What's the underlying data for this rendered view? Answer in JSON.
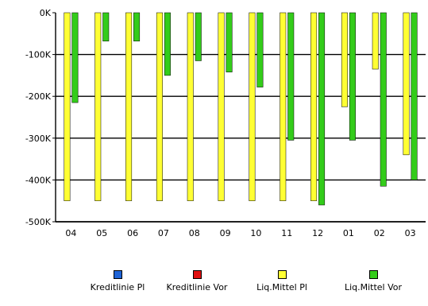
{
  "chart_data": {
    "type": "bar",
    "categories": [
      "04",
      "05",
      "06",
      "07",
      "08",
      "09",
      "10",
      "11",
      "12",
      "01",
      "02",
      "03"
    ],
    "series": [
      {
        "name": "Kreditlinie Pl",
        "color": "#1e63d6",
        "values": [
          0,
          0,
          0,
          0,
          0,
          0,
          0,
          0,
          0,
          0,
          0,
          0
        ]
      },
      {
        "name": "Kreditlinie Vor",
        "color": "#e01010",
        "values": [
          0,
          0,
          0,
          0,
          0,
          0,
          0,
          0,
          0,
          0,
          0,
          0
        ]
      },
      {
        "name": "Liq.Mittel Pl",
        "color": "#ffff33",
        "values": [
          -450,
          -450,
          -450,
          -450,
          -450,
          -450,
          -450,
          -450,
          -450,
          -225,
          -135,
          -340
        ]
      },
      {
        "name": "Liq.Mittel Vor",
        "color": "#33cc1a",
        "values": [
          -215,
          -68,
          -68,
          -150,
          -115,
          -142,
          -178,
          -305,
          -460,
          -305,
          -415,
          -400
        ]
      }
    ],
    "ylim": [
      -500,
      0
    ],
    "yticks": [
      0,
      -100,
      -200,
      -300,
      -400,
      -500
    ],
    "ytick_labels": [
      "0K",
      "-100K",
      "-200K",
      "-300K",
      "-400K",
      "-500K"
    ],
    "grid": true,
    "legend_position": "bottom"
  }
}
